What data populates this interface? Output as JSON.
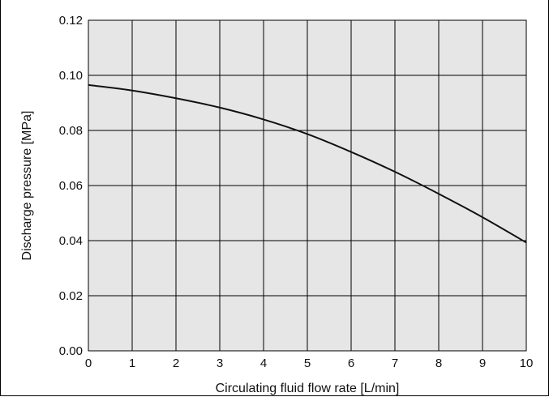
{
  "chart_data": {
    "type": "line",
    "title": "",
    "xlabel": "Circulating fluid flow rate [L/min]",
    "ylabel": "Discharge pressure [MPa]",
    "xlim": [
      0,
      10
    ],
    "ylim": [
      0,
      0.12
    ],
    "x_ticks": [
      "0",
      "1",
      "2",
      "3",
      "4",
      "5",
      "6",
      "7",
      "8",
      "9",
      "10"
    ],
    "y_ticks": [
      "0.00",
      "0.02",
      "0.04",
      "0.06",
      "0.08",
      "0.10",
      "0.12"
    ],
    "grid": true,
    "plot_background": "#e6e6e6",
    "line_color": "#111111",
    "series": [
      {
        "x": [
          0,
          1,
          2,
          3,
          4,
          5,
          6,
          7,
          8,
          9,
          10
        ],
        "y": [
          0.0965,
          0.0945,
          0.0917,
          0.0883,
          0.084,
          0.0787,
          0.0722,
          0.065,
          0.057,
          0.0485,
          0.0393
        ]
      }
    ]
  }
}
